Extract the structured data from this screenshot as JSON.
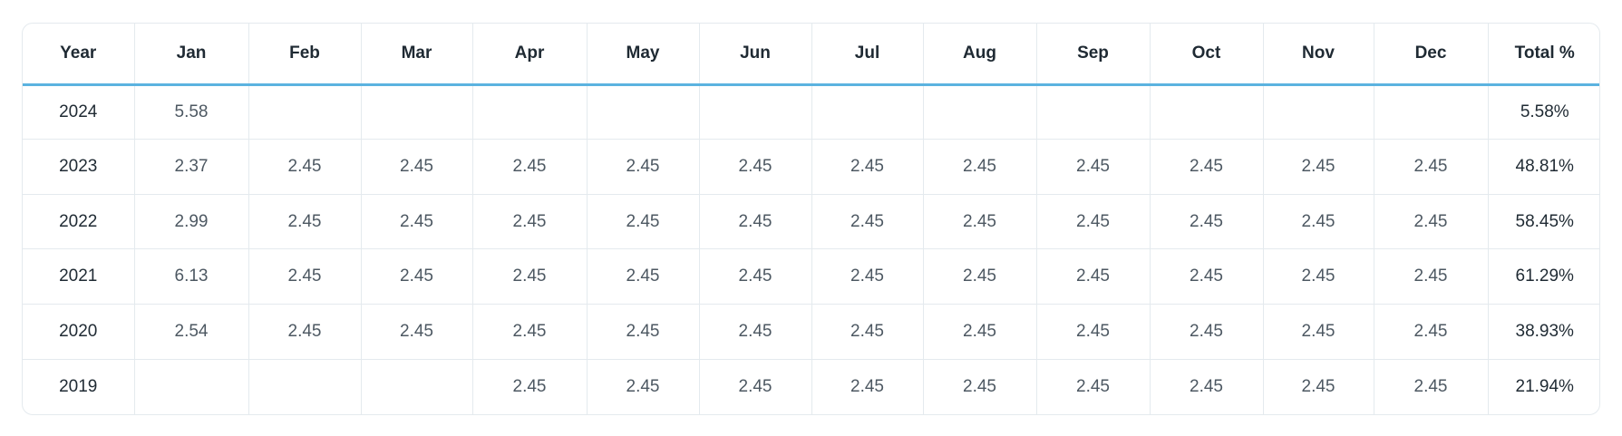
{
  "table": {
    "headers": [
      "Year",
      "Jan",
      "Feb",
      "Mar",
      "Apr",
      "May",
      "Jun",
      "Jul",
      "Aug",
      "Sep",
      "Oct",
      "Nov",
      "Dec",
      "Total %"
    ],
    "rows": [
      {
        "year": "2024",
        "months": [
          "5.58",
          "",
          "",
          "",
          "",
          "",
          "",
          "",
          "",
          "",
          "",
          ""
        ],
        "total": "5.58%"
      },
      {
        "year": "2023",
        "months": [
          "2.37",
          "2.45",
          "2.45",
          "2.45",
          "2.45",
          "2.45",
          "2.45",
          "2.45",
          "2.45",
          "2.45",
          "2.45",
          "2.45"
        ],
        "total": "48.81%"
      },
      {
        "year": "2022",
        "months": [
          "2.99",
          "2.45",
          "2.45",
          "2.45",
          "2.45",
          "2.45",
          "2.45",
          "2.45",
          "2.45",
          "2.45",
          "2.45",
          "2.45"
        ],
        "total": "58.45%"
      },
      {
        "year": "2021",
        "months": [
          "6.13",
          "2.45",
          "2.45",
          "2.45",
          "2.45",
          "2.45",
          "2.45",
          "2.45",
          "2.45",
          "2.45",
          "2.45",
          "2.45"
        ],
        "total": "61.29%"
      },
      {
        "year": "2020",
        "months": [
          "2.54",
          "2.45",
          "2.45",
          "2.45",
          "2.45",
          "2.45",
          "2.45",
          "2.45",
          "2.45",
          "2.45",
          "2.45",
          "2.45"
        ],
        "total": "38.93%"
      },
      {
        "year": "2019",
        "months": [
          "",
          "",
          "",
          "2.45",
          "2.45",
          "2.45",
          "2.45",
          "2.45",
          "2.45",
          "2.45",
          "2.45",
          "2.45"
        ],
        "total": "21.94%"
      }
    ]
  },
  "colors": {
    "header_underline": "#5bb3e0",
    "grid_line": "#e4eaee",
    "header_text": "#1f2a33",
    "value_text": "#4d5862"
  }
}
